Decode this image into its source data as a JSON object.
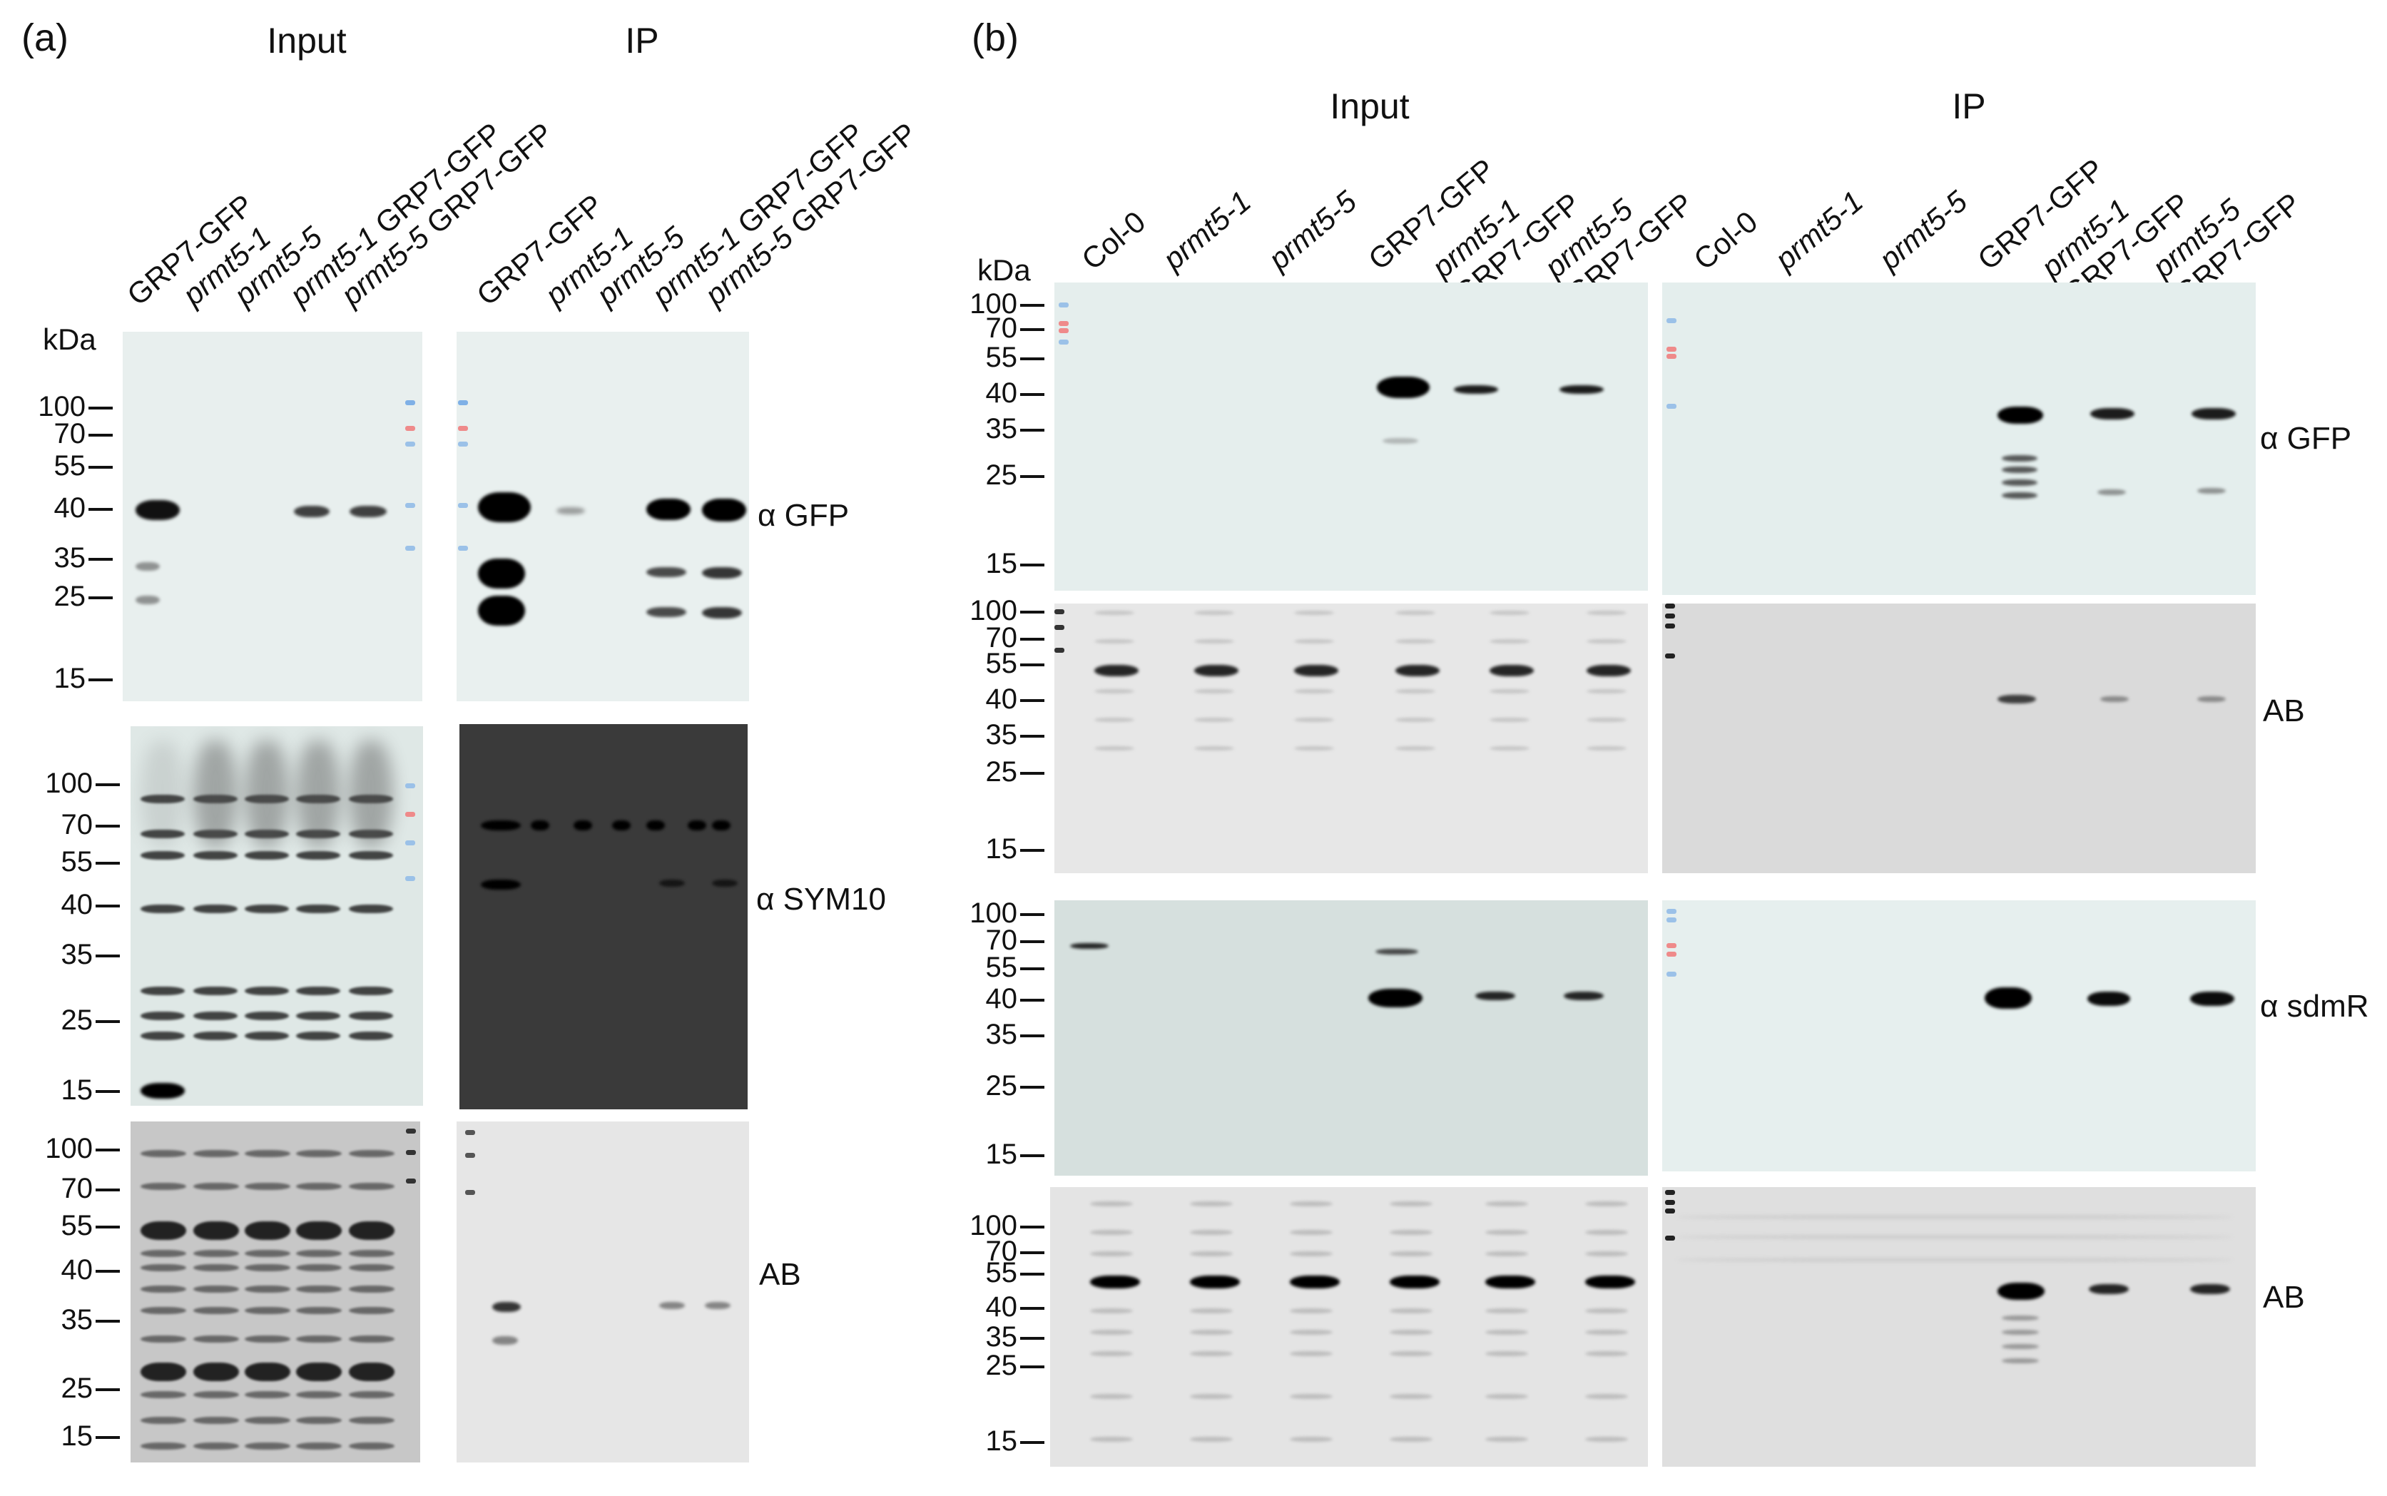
{
  "panels": {
    "a": {
      "letter": "(a)",
      "input_title": "Input",
      "ip_title": "IP",
      "lanes": [
        {
          "parts": [
            {
              "t": "GRP7-GFP",
              "i": false
            }
          ]
        },
        {
          "parts": [
            {
              "t": "prmt5-1",
              "i": true
            }
          ]
        },
        {
          "parts": [
            {
              "t": "prmt5-5",
              "i": true
            }
          ]
        },
        {
          "parts": [
            {
              "t": "prmt5-1",
              "i": true
            },
            {
              "t": " GRP7-GFP",
              "i": false
            }
          ]
        },
        {
          "parts": [
            {
              "t": "prmt5-5",
              "i": true
            },
            {
              "t": " GRP7-GFP",
              "i": false
            }
          ]
        }
      ],
      "kda_label": "kDa",
      "markers_top": [
        "100",
        "70",
        "55",
        "40",
        "35",
        "25",
        "15"
      ],
      "markers_mid": [
        "100",
        "70",
        "55",
        "40",
        "35",
        "25",
        "15"
      ],
      "markers_bot": [
        "100",
        "70",
        "55",
        "40",
        "35",
        "25",
        "15"
      ],
      "antibodies": [
        "α GFP",
        "α SYM10",
        "AB"
      ]
    },
    "b": {
      "letter": "(b)",
      "input_title": "Input",
      "ip_title": "IP",
      "lanes": [
        {
          "l1": [
            {
              "t": "Col-0",
              "i": false
            }
          ],
          "l2": []
        },
        {
          "l1": [
            {
              "t": "prmt5-1",
              "i": true
            }
          ],
          "l2": []
        },
        {
          "l1": [
            {
              "t": "prmt5-5",
              "i": true
            }
          ],
          "l2": []
        },
        {
          "l1": [
            {
              "t": "GRP7-GFP",
              "i": false
            }
          ],
          "l2": []
        },
        {
          "l1": [
            {
              "t": "prmt5-1",
              "i": true
            }
          ],
          "l2": [
            {
              "t": "GRP7-GFP",
              "i": false
            }
          ]
        },
        {
          "l1": [
            {
              "t": "prmt5-5",
              "i": true
            }
          ],
          "l2": [
            {
              "t": "GRP7-GFP",
              "i": false
            }
          ]
        }
      ],
      "kda_label": "kDa",
      "markers_1": [
        "100",
        "70",
        "55",
        "40",
        "35",
        "25",
        "15"
      ],
      "markers_2": [
        "100",
        "70",
        "55",
        "40",
        "35",
        "25",
        "15"
      ],
      "markers_3": [
        "100",
        "70",
        "55",
        "40",
        "35",
        "25",
        "15"
      ],
      "markers_4": [
        "100",
        "70",
        "55",
        "40",
        "35",
        "25",
        "15"
      ],
      "antibodies": [
        "α GFP",
        "AB",
        "α sdmR",
        "AB"
      ]
    }
  }
}
